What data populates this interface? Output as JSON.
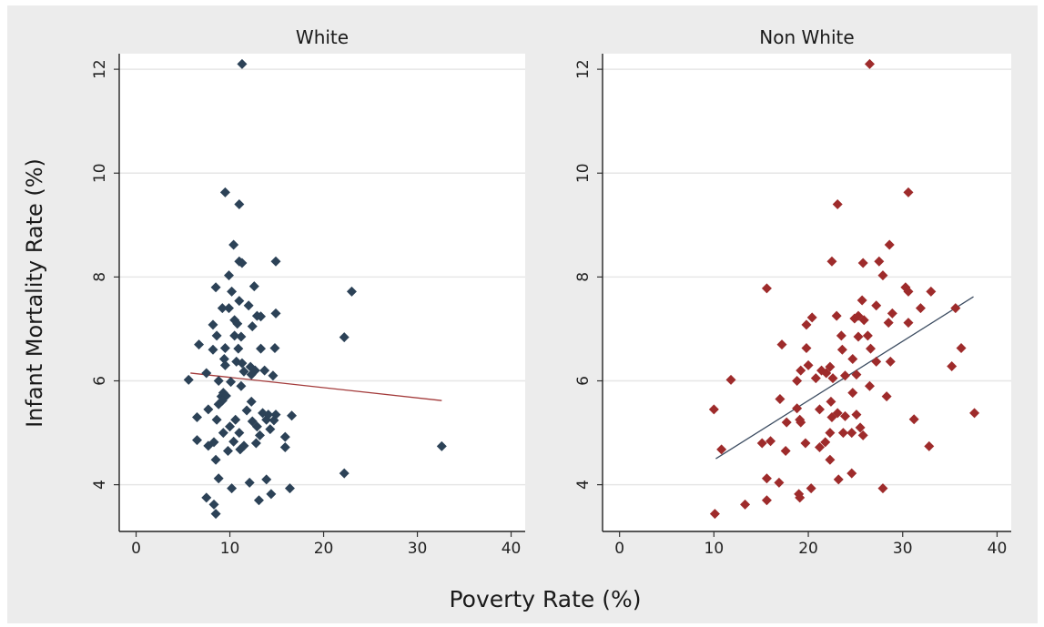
{
  "figure": {
    "ylabel": "Infant Mortality Rate (%)",
    "xlabel": "Poverty Rate (%)",
    "background": "#ececec",
    "plot_background": "#ffffff",
    "grid_color": "#e6e6e6"
  },
  "chart_data": [
    {
      "type": "scatter",
      "title": "White",
      "xlabel": "Poverty Rate (%)",
      "ylabel": "Infant Mortality Rate (%)",
      "xlim": [
        -1.8,
        41.5
      ],
      "ylim": [
        3.1,
        12.3
      ],
      "xticks": [
        0,
        10,
        20,
        30,
        40
      ],
      "yticks": [
        4,
        6,
        8,
        10,
        12
      ],
      "grid": "horizontal",
      "marker": "diamond",
      "marker_color": "#2c4257",
      "fit_color": "#a33a3a",
      "fit_line": {
        "x": [
          5.8,
          32.6
        ],
        "y": [
          6.15,
          5.62
        ]
      },
      "points": [
        [
          11.3,
          12.1
        ],
        [
          9.5,
          9.63
        ],
        [
          11.0,
          9.4
        ],
        [
          10.4,
          8.62
        ],
        [
          11.0,
          8.3
        ],
        [
          11.3,
          8.27
        ],
        [
          14.9,
          8.3
        ],
        [
          9.9,
          8.03
        ],
        [
          8.5,
          7.8
        ],
        [
          10.2,
          7.72
        ],
        [
          12.6,
          7.82
        ],
        [
          11.0,
          7.54
        ],
        [
          12.0,
          7.45
        ],
        [
          9.2,
          7.4
        ],
        [
          9.9,
          7.4
        ],
        [
          12.9,
          7.25
        ],
        [
          13.3,
          7.24
        ],
        [
          14.9,
          7.3
        ],
        [
          8.2,
          7.08
        ],
        [
          10.5,
          7.17
        ],
        [
          10.8,
          7.1
        ],
        [
          12.4,
          7.05
        ],
        [
          8.6,
          6.87
        ],
        [
          10.5,
          6.87
        ],
        [
          11.2,
          6.85
        ],
        [
          6.7,
          6.7
        ],
        [
          8.2,
          6.6
        ],
        [
          9.5,
          6.63
        ],
        [
          10.9,
          6.62
        ],
        [
          13.3,
          6.62
        ],
        [
          14.8,
          6.63
        ],
        [
          9.4,
          6.42
        ],
        [
          10.7,
          6.37
        ],
        [
          11.3,
          6.34
        ],
        [
          9.5,
          6.3
        ],
        [
          12.2,
          6.27
        ],
        [
          12.7,
          6.2
        ],
        [
          13.7,
          6.2
        ],
        [
          14.6,
          6.1
        ],
        [
          11.5,
          6.18
        ],
        [
          12.3,
          6.12
        ],
        [
          7.5,
          6.15
        ],
        [
          8.8,
          6.0
        ],
        [
          5.6,
          6.02
        ],
        [
          10.1,
          5.98
        ],
        [
          11.2,
          5.9
        ],
        [
          9.3,
          5.77
        ],
        [
          9.1,
          5.7
        ],
        [
          9.6,
          5.71
        ],
        [
          9.2,
          5.62
        ],
        [
          12.3,
          5.6
        ],
        [
          8.8,
          5.55
        ],
        [
          7.7,
          5.45
        ],
        [
          11.8,
          5.43
        ],
        [
          13.5,
          5.38
        ],
        [
          14.1,
          5.35
        ],
        [
          14.9,
          5.35
        ],
        [
          16.6,
          5.33
        ],
        [
          6.5,
          5.3
        ],
        [
          8.6,
          5.25
        ],
        [
          10.6,
          5.25
        ],
        [
          12.4,
          5.22
        ],
        [
          13.9,
          5.25
        ],
        [
          14.7,
          5.24
        ],
        [
          10.0,
          5.12
        ],
        [
          12.9,
          5.12
        ],
        [
          14.3,
          5.07
        ],
        [
          9.3,
          5.0
        ],
        [
          11.0,
          5.0
        ],
        [
          13.2,
          4.95
        ],
        [
          15.9,
          4.92
        ],
        [
          6.5,
          4.86
        ],
        [
          8.3,
          4.82
        ],
        [
          10.4,
          4.83
        ],
        [
          12.8,
          4.8
        ],
        [
          7.7,
          4.75
        ],
        [
          11.5,
          4.75
        ],
        [
          15.9,
          4.72
        ],
        [
          32.6,
          4.74
        ],
        [
          9.8,
          4.65
        ],
        [
          11.1,
          4.68
        ],
        [
          8.5,
          4.48
        ],
        [
          23.0,
          7.72
        ],
        [
          22.2,
          6.84
        ],
        [
          22.2,
          4.22
        ],
        [
          8.8,
          4.12
        ],
        [
          13.9,
          4.1
        ],
        [
          12.1,
          4.04
        ],
        [
          10.2,
          3.93
        ],
        [
          16.4,
          3.93
        ],
        [
          14.4,
          3.82
        ],
        [
          7.5,
          3.75
        ],
        [
          13.1,
          3.7
        ],
        [
          8.3,
          3.62
        ],
        [
          8.5,
          3.44
        ]
      ]
    },
    {
      "type": "scatter",
      "title": "Non White",
      "xlabel": "Poverty Rate (%)",
      "ylabel": "Infant Mortality Rate (%)",
      "xlim": [
        -1.8,
        41.5
      ],
      "ylim": [
        3.1,
        12.3
      ],
      "xticks": [
        0,
        10,
        20,
        30,
        40
      ],
      "yticks": [
        4,
        6,
        8,
        10,
        12
      ],
      "grid": "horizontal",
      "marker": "diamond",
      "marker_color": "#9e2b2b",
      "fit_color": "#3c4c61",
      "fit_line": {
        "x": [
          10.2,
          37.5
        ],
        "y": [
          4.5,
          7.62
        ]
      },
      "points": [
        [
          26.5,
          12.1
        ],
        [
          23.1,
          9.4
        ],
        [
          30.6,
          9.63
        ],
        [
          28.6,
          8.62
        ],
        [
          22.5,
          8.3
        ],
        [
          25.8,
          8.27
        ],
        [
          27.5,
          8.3
        ],
        [
          15.6,
          7.78
        ],
        [
          27.9,
          8.03
        ],
        [
          30.3,
          7.8
        ],
        [
          30.6,
          7.72
        ],
        [
          33.0,
          7.72
        ],
        [
          25.7,
          7.55
        ],
        [
          27.2,
          7.45
        ],
        [
          31.9,
          7.4
        ],
        [
          35.6,
          7.4
        ],
        [
          23.0,
          7.25
        ],
        [
          24.9,
          7.2
        ],
        [
          25.3,
          7.25
        ],
        [
          28.9,
          7.3
        ],
        [
          20.4,
          7.22
        ],
        [
          19.8,
          7.08
        ],
        [
          25.9,
          7.17
        ],
        [
          28.5,
          7.12
        ],
        [
          30.6,
          7.12
        ],
        [
          23.5,
          6.87
        ],
        [
          25.3,
          6.85
        ],
        [
          26.3,
          6.87
        ],
        [
          17.2,
          6.7
        ],
        [
          19.8,
          6.63
        ],
        [
          23.6,
          6.6
        ],
        [
          26.6,
          6.62
        ],
        [
          36.2,
          6.63
        ],
        [
          24.7,
          6.42
        ],
        [
          27.2,
          6.37
        ],
        [
          28.7,
          6.37
        ],
        [
          20.0,
          6.3
        ],
        [
          35.2,
          6.28
        ],
        [
          22.3,
          6.27
        ],
        [
          19.2,
          6.2
        ],
        [
          21.4,
          6.2
        ],
        [
          21.9,
          6.15
        ],
        [
          25.1,
          6.12
        ],
        [
          23.9,
          6.1
        ],
        [
          20.8,
          6.05
        ],
        [
          11.8,
          6.02
        ],
        [
          22.6,
          6.05
        ],
        [
          18.8,
          6.0
        ],
        [
          26.5,
          5.9
        ],
        [
          24.7,
          5.77
        ],
        [
          22.4,
          5.6
        ],
        [
          17.0,
          5.65
        ],
        [
          28.3,
          5.7
        ],
        [
          21.2,
          5.45
        ],
        [
          18.8,
          5.47
        ],
        [
          10.0,
          5.45
        ],
        [
          37.6,
          5.38
        ],
        [
          23.1,
          5.38
        ],
        [
          23.9,
          5.32
        ],
        [
          22.5,
          5.3
        ],
        [
          25.1,
          5.35
        ],
        [
          19.1,
          5.25
        ],
        [
          31.2,
          5.26
        ],
        [
          17.7,
          5.2
        ],
        [
          19.2,
          5.2
        ],
        [
          25.5,
          5.1
        ],
        [
          22.3,
          5.0
        ],
        [
          23.7,
          5.0
        ],
        [
          24.6,
          5.0
        ],
        [
          25.8,
          4.95
        ],
        [
          16.0,
          4.84
        ],
        [
          15.1,
          4.8
        ],
        [
          19.7,
          4.8
        ],
        [
          21.8,
          4.82
        ],
        [
          21.2,
          4.72
        ],
        [
          32.8,
          4.74
        ],
        [
          10.8,
          4.68
        ],
        [
          17.6,
          4.65
        ],
        [
          22.3,
          4.48
        ],
        [
          24.6,
          4.22
        ],
        [
          15.6,
          4.12
        ],
        [
          16.9,
          4.04
        ],
        [
          23.2,
          4.1
        ],
        [
          20.3,
          3.93
        ],
        [
          27.9,
          3.93
        ],
        [
          19.0,
          3.82
        ],
        [
          19.1,
          3.75
        ],
        [
          15.6,
          3.7
        ],
        [
          13.3,
          3.62
        ],
        [
          10.1,
          3.44
        ]
      ]
    }
  ]
}
